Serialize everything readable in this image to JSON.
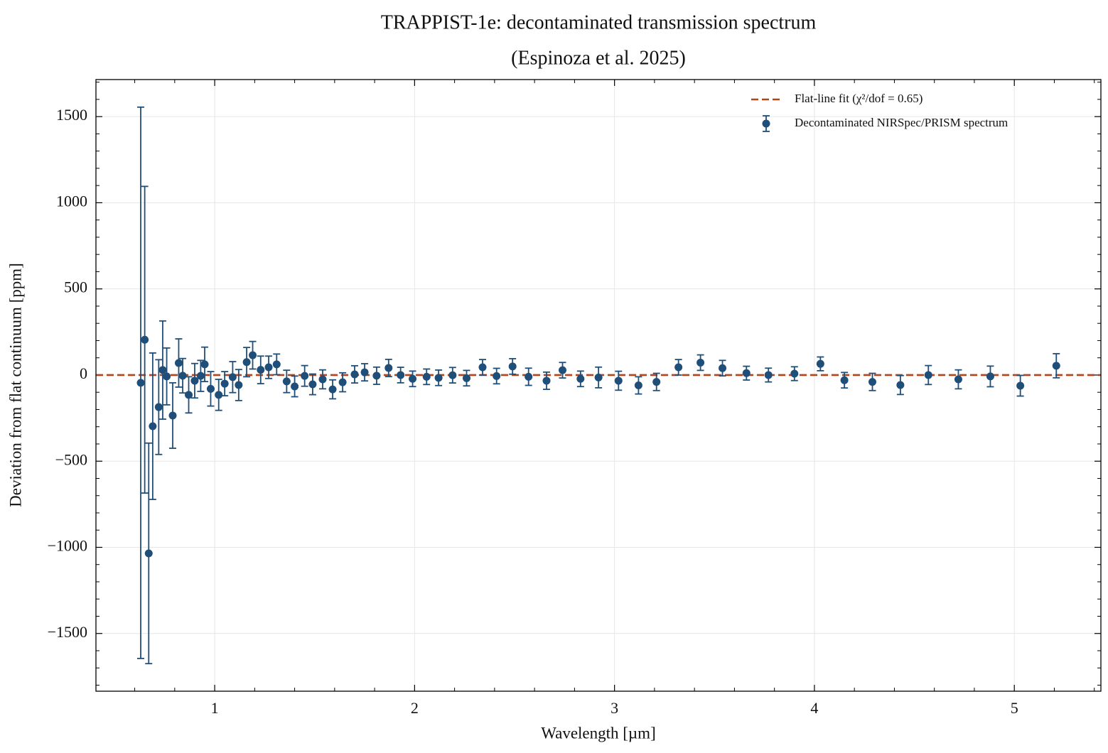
{
  "chart_data": {
    "type": "errorbar",
    "title": "TRAPPIST-1e: decontaminated transmission spectrum",
    "subtitle": "(Espinoza et al. 2025)",
    "x_label": "Wavelength [µm]",
    "y_label": "Deviation from flat continuum [ppm]",
    "xlim": [
      0.406,
      5.433
    ],
    "ylim": [
      -1835,
      1715
    ],
    "xticks": [
      1,
      2,
      3,
      4,
      5
    ],
    "yticks": [
      {
        "value": -1500,
        "label": "−1500"
      },
      {
        "value": -1000,
        "label": "−1000"
      },
      {
        "value": -500,
        "label": "−500"
      },
      0,
      500,
      1000,
      1500
    ],
    "xminorticks": [
      0.6,
      0.8,
      1.2,
      1.4,
      1.6,
      1.8,
      2.2,
      2.4,
      2.6,
      2.8,
      3.2,
      3.4,
      3.6,
      3.8,
      4.2,
      4.4,
      4.6,
      4.8,
      5.2,
      5.4
    ],
    "yminorticks": [
      -1800,
      -1700,
      -1600,
      -1400,
      -1300,
      -1200,
      -1100,
      -900,
      -800,
      -700,
      -600,
      -400,
      -300,
      -200,
      -100,
      100,
      200,
      300,
      400,
      600,
      700,
      800,
      900,
      1100,
      1200,
      1300,
      1400,
      1600,
      1700
    ],
    "grid": true,
    "legend": "upper right",
    "fit": {
      "name": "Flat-line fit (χ²/dof = 0.65)",
      "color": "#b5441c",
      "value": 0
    },
    "x": [
      0.63,
      0.65,
      0.67,
      0.69,
      0.72,
      0.74,
      0.76,
      0.79,
      0.82,
      0.84,
      0.87,
      0.9,
      0.93,
      0.95,
      0.98,
      1.02,
      1.05,
      1.09,
      1.12,
      1.16,
      1.19,
      1.23,
      1.27,
      1.31,
      1.36,
      1.4,
      1.45,
      1.49,
      1.54,
      1.59,
      1.64,
      1.7,
      1.75,
      1.81,
      1.87,
      1.93,
      1.99,
      2.06,
      2.12,
      2.19,
      2.26,
      2.34,
      2.41,
      2.49,
      2.57,
      2.66,
      2.74,
      2.83,
      2.92,
      3.02,
      3.12,
      3.21,
      3.32,
      3.43,
      3.54,
      3.66,
      3.77,
      3.9,
      4.03,
      4.15,
      4.29,
      4.43,
      4.57,
      4.72,
      4.88,
      5.03,
      5.21
    ],
    "series": [
      {
        "name": "Decontaminated NIRSpec/PRISM spectrum",
        "color": "#1f4e79",
        "values": [
          -45,
          205,
          -1035,
          -297,
          -186,
          29,
          -8,
          -235,
          70,
          -4,
          -115,
          -33,
          -5,
          62,
          -80,
          -115,
          -50,
          -12,
          -58,
          75,
          115,
          30,
          45,
          62,
          -37,
          -66,
          -5,
          -54,
          -25,
          -83,
          -42,
          4,
          16,
          -4,
          41,
          0,
          -22,
          -10,
          -16,
          -1,
          -18,
          45,
          -6,
          50,
          -10,
          -33,
          28,
          -22,
          -14,
          -33,
          -60,
          -40,
          45,
          72,
          40,
          11,
          0,
          8,
          65,
          -30,
          -40,
          -58,
          0,
          -25,
          -8,
          -62,
          54
        ],
        "errors": [
          1600,
          890,
          640,
          425,
          275,
          285,
          165,
          190,
          140,
          100,
          105,
          100,
          90,
          100,
          100,
          90,
          70,
          90,
          90,
          85,
          80,
          80,
          65,
          60,
          65,
          60,
          60,
          60,
          55,
          55,
          55,
          50,
          50,
          50,
          50,
          45,
          45,
          45,
          45,
          45,
          45,
          45,
          45,
          45,
          50,
          50,
          45,
          45,
          60,
          55,
          50,
          50,
          45,
          45,
          45,
          40,
          40,
          40,
          40,
          45,
          50,
          55,
          55,
          55,
          60,
          60,
          70
        ]
      }
    ]
  }
}
